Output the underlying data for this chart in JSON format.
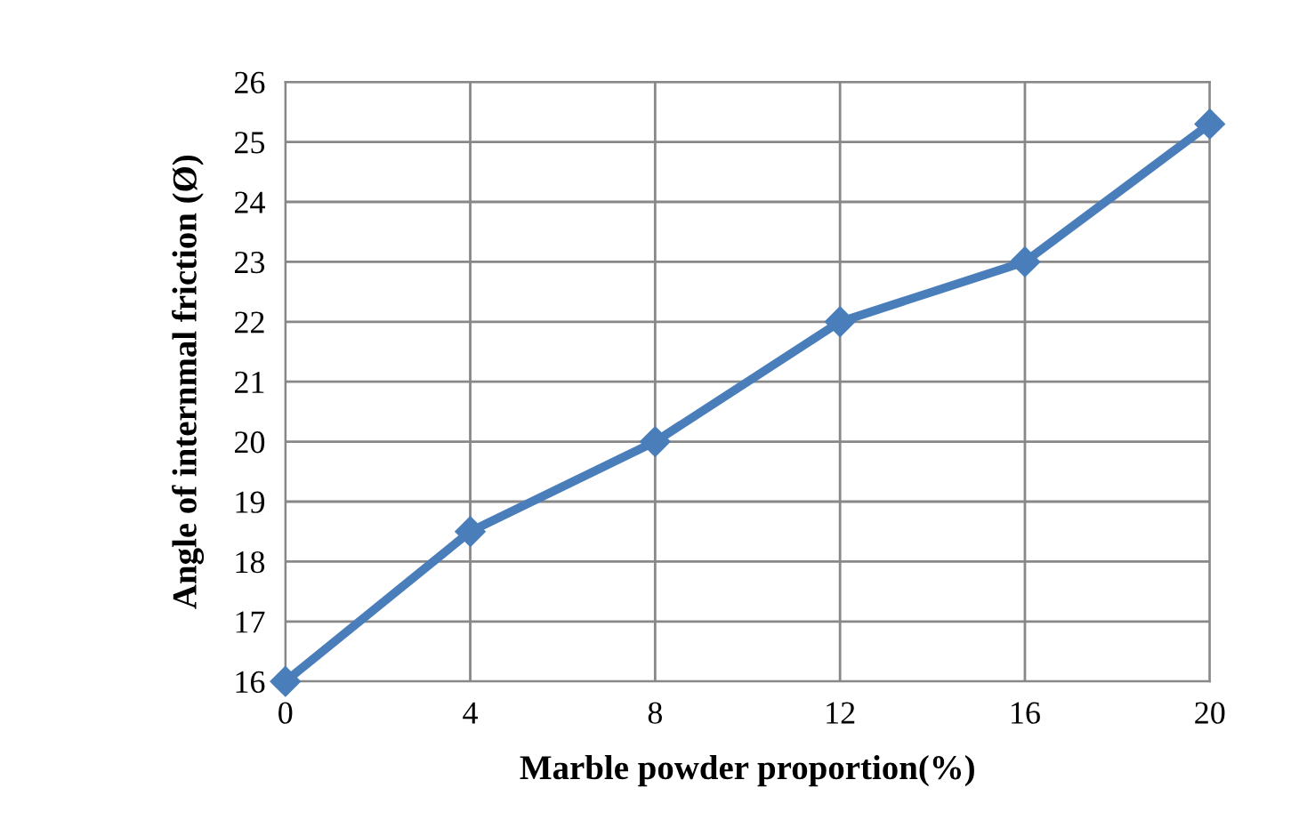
{
  "chart_data": {
    "type": "line",
    "xlabel": "Marble powder proportion(%)",
    "ylabel": "Angle of internmal friction (Ø)",
    "x": [
      0,
      4,
      8,
      12,
      16,
      20
    ],
    "series": [
      {
        "color": "#4a7ebb",
        "values": [
          16,
          18.5,
          20,
          22,
          23,
          25.3
        ]
      }
    ],
    "xlim": [
      0,
      20
    ],
    "xticks": [
      0,
      4,
      8,
      12,
      16,
      20
    ],
    "ylim": [
      16,
      26
    ],
    "yticks": [
      16,
      17,
      18,
      19,
      20,
      21,
      22,
      23,
      24,
      25,
      26
    ],
    "grid": true,
    "marker": "diamond",
    "line_style": "solid",
    "legend": false
  }
}
